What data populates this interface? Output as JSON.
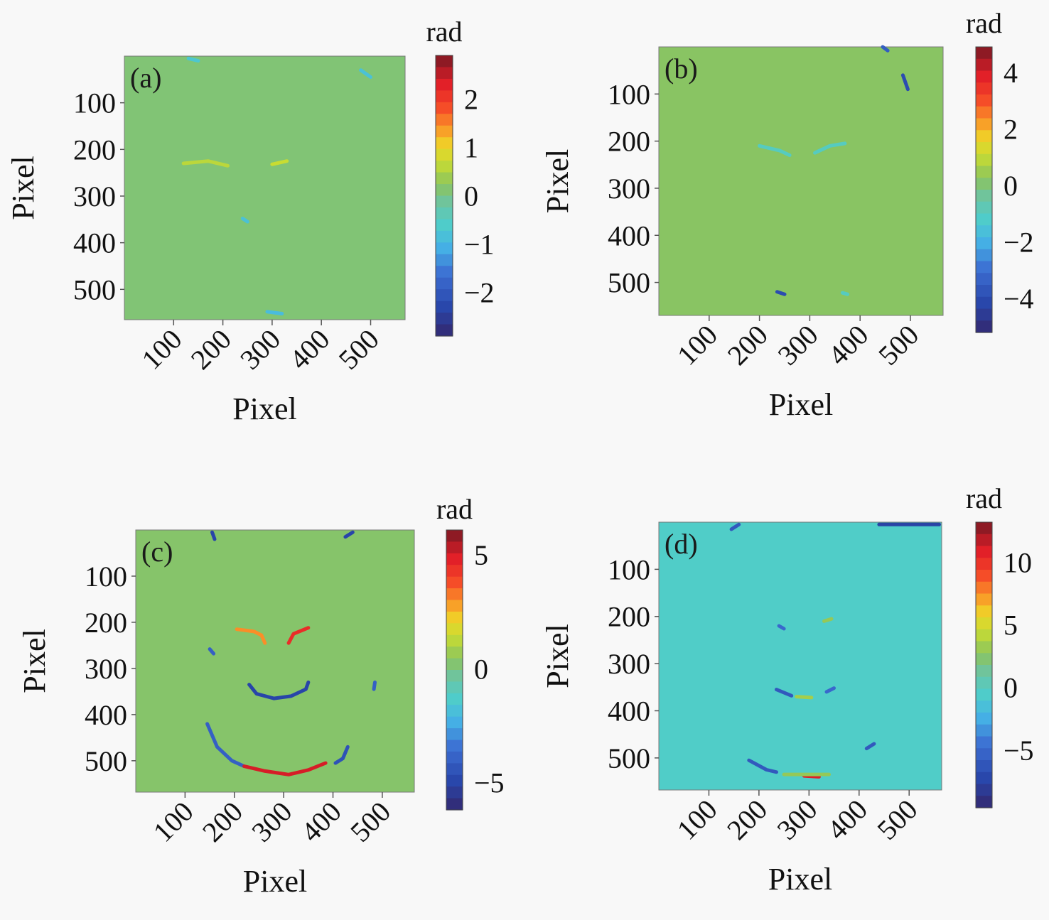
{
  "chart_data": [
    {
      "type": "heatmap",
      "panel_label": "(a)",
      "xlabel": "Pixel",
      "ylabel": "Pixel",
      "x_ticks": [
        100,
        200,
        300,
        400,
        500
      ],
      "y_ticks": [
        100,
        200,
        300,
        400,
        500
      ],
      "x_tick_labels": [
        "100",
        "200",
        "300",
        "400",
        "500"
      ],
      "y_tick_labels": [
        "100",
        "200",
        "300",
        "400",
        "500"
      ],
      "xlim": [
        0,
        570
      ],
      "ylim": [
        0,
        565
      ],
      "colorbar": {
        "label": "rad",
        "colormap": "jet",
        "range": [
          -2.9,
          2.9
        ],
        "ticks": [
          2,
          1,
          0,
          -1,
          -2
        ],
        "tick_labels": [
          "2",
          "1",
          "0",
          "−1",
          "−2"
        ]
      },
      "background_value": 0.1,
      "features": [
        {
          "name": "left-eyebrow",
          "value": 0.6,
          "points": [
            [
              120,
              230
            ],
            [
              170,
              225
            ],
            [
              210,
              235
            ]
          ]
        },
        {
          "name": "right-eyebrow",
          "value": 0.7,
          "points": [
            [
              300,
              232
            ],
            [
              330,
              225
            ]
          ]
        },
        {
          "name": "nose-mark",
          "value": -0.8,
          "points": [
            [
              240,
              348
            ],
            [
              250,
              355
            ]
          ]
        },
        {
          "name": "chin-mark",
          "value": -0.9,
          "points": [
            [
              290,
              548
            ],
            [
              320,
              552
            ]
          ]
        },
        {
          "name": "top-left-mark",
          "value": -0.7,
          "points": [
            [
              130,
              5
            ],
            [
              150,
              10
            ]
          ]
        },
        {
          "name": "top-right-mark",
          "value": -0.8,
          "points": [
            [
              480,
              30
            ],
            [
              500,
              45
            ]
          ]
        }
      ]
    },
    {
      "type": "heatmap",
      "panel_label": "(b)",
      "xlabel": "Pixel",
      "ylabel": "Pixel",
      "x_ticks": [
        100,
        200,
        300,
        400,
        500
      ],
      "y_ticks": [
        100,
        200,
        300,
        400,
        500
      ],
      "x_tick_labels": [
        "100",
        "200",
        "300",
        "400",
        "500"
      ],
      "y_tick_labels": [
        "100",
        "200",
        "300",
        "400",
        "500"
      ],
      "xlim": [
        0,
        565
      ],
      "ylim": [
        0,
        570
      ],
      "colorbar": {
        "label": "rad",
        "colormap": "jet",
        "range": [
          -5.2,
          4.9
        ],
        "ticks": [
          4,
          2,
          0,
          -2,
          -4
        ],
        "tick_labels": [
          "4",
          "2",
          "0",
          "−2",
          "−4"
        ]
      },
      "background_value": 0.2,
      "features": [
        {
          "name": "left-eyebrow",
          "value": -1.0,
          "points": [
            [
              200,
              210
            ],
            [
              240,
              220
            ],
            [
              260,
              230
            ]
          ]
        },
        {
          "name": "right-eyebrow",
          "value": -1.0,
          "points": [
            [
              310,
              225
            ],
            [
              340,
              210
            ],
            [
              370,
              205
            ]
          ]
        },
        {
          "name": "top-right-mark",
          "value": -4.0,
          "points": [
            [
              485,
              60
            ],
            [
              495,
              90
            ]
          ]
        },
        {
          "name": "top-right-edge",
          "value": -3.5,
          "points": [
            [
              445,
              0
            ],
            [
              455,
              8
            ]
          ]
        },
        {
          "name": "chin-left-mark",
          "value": -4.0,
          "points": [
            [
              235,
              520
            ],
            [
              250,
              525
            ]
          ]
        },
        {
          "name": "chin-right-mark",
          "value": -1.0,
          "points": [
            [
              365,
              522
            ],
            [
              375,
              525
            ]
          ]
        }
      ]
    },
    {
      "type": "heatmap",
      "panel_label": "(c)",
      "xlabel": "Pixel",
      "ylabel": "Pixel",
      "x_ticks": [
        100,
        200,
        300,
        400,
        500
      ],
      "y_ticks": [
        100,
        200,
        300,
        400,
        500
      ],
      "x_tick_labels": [
        "100",
        "200",
        "300",
        "400",
        "500"
      ],
      "y_tick_labels": [
        "100",
        "200",
        "300",
        "400",
        "500"
      ],
      "xlim": [
        0,
        565
      ],
      "ylim": [
        0,
        568
      ],
      "colorbar": {
        "label": "rad",
        "colormap": "jet",
        "range": [
          -6.2,
          6.1
        ],
        "ticks": [
          5,
          0,
          -5
        ],
        "tick_labels": [
          "5",
          "0",
          "−5"
        ]
      },
      "background_value": 0.3,
      "features": [
        {
          "name": "left-eyebrow",
          "value": 3.0,
          "points": [
            [
              205,
              215
            ],
            [
              240,
              220
            ],
            [
              255,
              228
            ],
            [
              262,
              245
            ]
          ]
        },
        {
          "name": "right-eyebrow",
          "value": 4.5,
          "points": [
            [
              310,
              245
            ],
            [
              320,
              225
            ],
            [
              350,
              212
            ]
          ]
        },
        {
          "name": "nose",
          "value": -5.0,
          "points": [
            [
              230,
              335
            ],
            [
              245,
              355
            ],
            [
              280,
              365
            ],
            [
              315,
              360
            ],
            [
              345,
              345
            ],
            [
              350,
              330
            ]
          ]
        },
        {
          "name": "jaw-left",
          "value": -4.0,
          "points": [
            [
              145,
              420
            ],
            [
              165,
              470
            ],
            [
              195,
              500
            ],
            [
              220,
              512
            ]
          ]
        },
        {
          "name": "jaw-right",
          "value": -4.5,
          "points": [
            [
              430,
              470
            ],
            [
              420,
              495
            ],
            [
              405,
              505
            ]
          ]
        },
        {
          "name": "chin",
          "value": 5.0,
          "points": [
            [
              220,
              512
            ],
            [
              260,
              522
            ],
            [
              310,
              530
            ],
            [
              350,
              520
            ],
            [
              385,
              505
            ]
          ]
        },
        {
          "name": "cheek-left-mark",
          "value": -4.0,
          "points": [
            [
              150,
              258
            ],
            [
              158,
              268
            ]
          ]
        },
        {
          "name": "cheek-right-mark",
          "value": -4.0,
          "points": [
            [
              485,
              330
            ],
            [
              483,
              345
            ]
          ]
        },
        {
          "name": "top-left-mark",
          "value": -5.0,
          "points": [
            [
              155,
              5
            ],
            [
              160,
              20
            ]
          ]
        },
        {
          "name": "top-right-mark",
          "value": -5.0,
          "points": [
            [
              425,
              15
            ],
            [
              440,
              5
            ]
          ]
        }
      ]
    },
    {
      "type": "heatmap",
      "panel_label": "(d)",
      "xlabel": "Pixel",
      "ylabel": "Pixel",
      "x_ticks": [
        100,
        200,
        300,
        400,
        500
      ],
      "y_ticks": [
        100,
        200,
        300,
        400,
        500
      ],
      "x_tick_labels": [
        "100",
        "200",
        "300",
        "400",
        "500"
      ],
      "y_tick_labels": [
        "100",
        "200",
        "300",
        "400",
        "500"
      ],
      "xlim": [
        0,
        565
      ],
      "ylim": [
        0,
        568
      ],
      "colorbar": {
        "label": "rad",
        "colormap": "jet",
        "range": [
          -9.6,
          13.2
        ],
        "ticks": [
          10,
          5,
          0,
          -5
        ],
        "tick_labels": [
          "10",
          "5",
          "0",
          "−5"
        ]
      },
      "background_value": -0.5,
      "features": [
        {
          "name": "left-eyebrow-mark",
          "value": -5.0,
          "points": [
            [
              240,
              220
            ],
            [
              250,
              226
            ]
          ]
        },
        {
          "name": "right-eyebrow-mark",
          "value": 3.0,
          "points": [
            [
              330,
              210
            ],
            [
              345,
              205
            ]
          ]
        },
        {
          "name": "nose-left",
          "value": -6.0,
          "points": [
            [
              235,
              355
            ],
            [
              265,
              368
            ]
          ]
        },
        {
          "name": "nose-center",
          "value": 3.5,
          "points": [
            [
              275,
              370
            ],
            [
              305,
              372
            ]
          ]
        },
        {
          "name": "nose-right",
          "value": -5.0,
          "points": [
            [
              335,
              360
            ],
            [
              350,
              352
            ]
          ]
        },
        {
          "name": "jaw-left",
          "value": -6.0,
          "points": [
            [
              180,
              505
            ],
            [
              215,
              525
            ],
            [
              235,
              530
            ]
          ]
        },
        {
          "name": "chin",
          "value": 11.0,
          "points": [
            [
              290,
              538
            ],
            [
              320,
              540
            ]
          ]
        },
        {
          "name": "chin-band",
          "value": 3.0,
          "points": [
            [
              250,
              535
            ],
            [
              340,
              535
            ]
          ]
        },
        {
          "name": "jaw-right",
          "value": -6.0,
          "points": [
            [
              415,
              480
            ],
            [
              430,
              470
            ]
          ]
        },
        {
          "name": "top-left-mark",
          "value": -6.0,
          "points": [
            [
              145,
              15
            ],
            [
              160,
              5
            ]
          ]
        },
        {
          "name": "top-right-band",
          "value": -7.5,
          "points": [
            [
              440,
              5
            ],
            [
              560,
              5
            ]
          ]
        }
      ]
    }
  ]
}
